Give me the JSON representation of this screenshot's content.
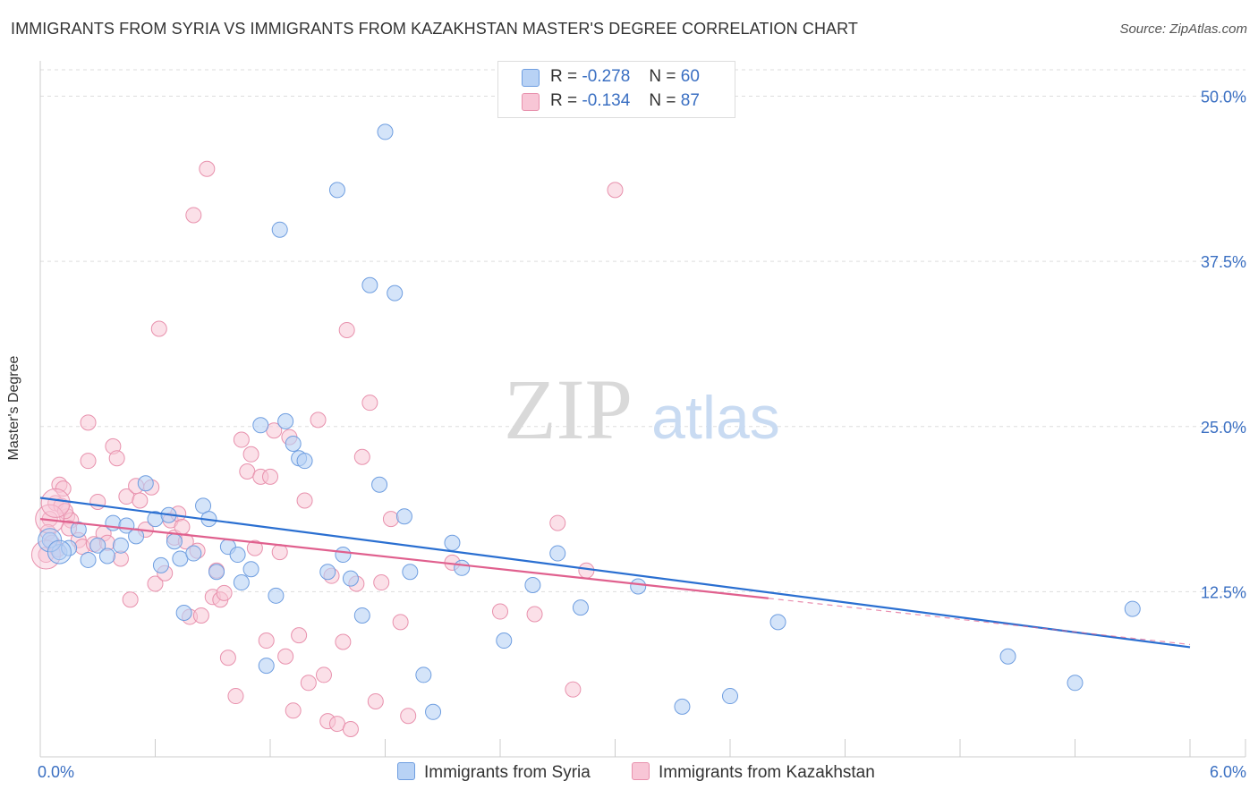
{
  "title": "IMMIGRANTS FROM SYRIA VS IMMIGRANTS FROM KAZAKHSTAN MASTER'S DEGREE CORRELATION CHART",
  "source": "Source: ZipAtlas.com",
  "watermark": {
    "zip": "ZIP",
    "atlas": "atlas"
  },
  "legend": {
    "syria": {
      "r_label": "R =",
      "r_value": "-0.278",
      "n_label": "N =",
      "n_value": "60"
    },
    "kazakhstan": {
      "r_label": "R =",
      "r_value": "-0.134",
      "n_label": "N =",
      "n_value": "87"
    }
  },
  "colors": {
    "syria_fill": "#b8d2f5",
    "syria_stroke": "#6f9ee0",
    "syria_line": "#2a6fd1",
    "kazakhstan_fill": "#f8c6d6",
    "kazakhstan_stroke": "#e891ad",
    "kazakhstan_line": "#e0608e",
    "grid": "#dddddd",
    "axis_text": "#3a6fc2"
  },
  "chart_data": {
    "type": "scatter",
    "title": "IMMIGRANTS FROM SYRIA VS IMMIGRANTS FROM KAZAKHSTAN MASTER'S DEGREE CORRELATION CHART",
    "xlabel": "",
    "ylabel": "Master's Degree",
    "xlim": [
      0,
      6
    ],
    "ylim": [
      0,
      52
    ],
    "x_tick_labels": [
      "0.0%",
      "6.0%"
    ],
    "y_ticks": [
      12.5,
      25.0,
      37.5,
      50.0
    ],
    "y_tick_labels": [
      "12.5%",
      "25.0%",
      "37.5%",
      "50.0%"
    ],
    "grid": true,
    "legend_position": "top-center",
    "series": [
      {
        "name": "Immigrants from Syria",
        "trend": {
          "x": [
            0,
            6
          ],
          "y": [
            19.6,
            8.3
          ]
        },
        "points": [
          [
            0.05,
            16.4
          ],
          [
            0.1,
            15.5
          ],
          [
            0.15,
            15.8
          ],
          [
            0.2,
            17.2
          ],
          [
            0.25,
            14.9
          ],
          [
            0.3,
            16.0
          ],
          [
            0.35,
            15.2
          ],
          [
            0.38,
            17.7
          ],
          [
            0.42,
            16.0
          ],
          [
            0.45,
            17.5
          ],
          [
            0.5,
            16.7
          ],
          [
            0.55,
            20.7
          ],
          [
            0.6,
            18.0
          ],
          [
            0.63,
            14.5
          ],
          [
            0.67,
            18.3
          ],
          [
            0.7,
            16.3
          ],
          [
            0.73,
            15.0
          ],
          [
            0.75,
            10.9
          ],
          [
            0.8,
            15.4
          ],
          [
            0.85,
            19.0
          ],
          [
            0.88,
            18.0
          ],
          [
            0.92,
            14.0
          ],
          [
            0.98,
            15.9
          ],
          [
            1.03,
            15.3
          ],
          [
            1.05,
            13.2
          ],
          [
            1.1,
            14.2
          ],
          [
            1.15,
            25.1
          ],
          [
            1.18,
            6.9
          ],
          [
            1.23,
            12.2
          ],
          [
            1.25,
            39.9
          ],
          [
            1.28,
            25.4
          ],
          [
            1.32,
            23.7
          ],
          [
            1.35,
            22.6
          ],
          [
            1.38,
            22.4
          ],
          [
            1.5,
            14.0
          ],
          [
            1.55,
            42.9
          ],
          [
            1.58,
            15.3
          ],
          [
            1.62,
            13.5
          ],
          [
            1.68,
            10.7
          ],
          [
            1.72,
            35.7
          ],
          [
            1.77,
            20.6
          ],
          [
            1.8,
            47.3
          ],
          [
            1.85,
            35.1
          ],
          [
            1.9,
            18.2
          ],
          [
            1.93,
            14.0
          ],
          [
            2.0,
            6.2
          ],
          [
            2.05,
            3.4
          ],
          [
            2.15,
            16.2
          ],
          [
            2.2,
            14.3
          ],
          [
            2.42,
            8.8
          ],
          [
            2.57,
            13.0
          ],
          [
            2.7,
            15.4
          ],
          [
            2.82,
            11.3
          ],
          [
            3.12,
            12.9
          ],
          [
            3.35,
            3.8
          ],
          [
            3.6,
            4.6
          ],
          [
            3.85,
            10.2
          ],
          [
            5.05,
            7.6
          ],
          [
            5.4,
            5.6
          ],
          [
            5.7,
            11.2
          ]
        ],
        "large_points": [
          [
            0.05,
            16.4
          ],
          [
            0.1,
            15.5
          ]
        ]
      },
      {
        "name": "Immigrants from Kazakhstan",
        "trend": {
          "x": [
            0,
            3.8
          ],
          "y": [
            18.0,
            12.0
          ]
        },
        "trend_dashed": {
          "x": [
            3.8,
            6
          ],
          "y": [
            12.0,
            8.5
          ]
        },
        "points": [
          [
            0.03,
            15.3
          ],
          [
            0.05,
            18.0
          ],
          [
            0.08,
            19.2
          ],
          [
            0.1,
            20.6
          ],
          [
            0.12,
            20.3
          ],
          [
            0.14,
            18.2
          ],
          [
            0.16,
            17.9
          ],
          [
            0.2,
            16.4
          ],
          [
            0.22,
            15.9
          ],
          [
            0.25,
            25.3
          ],
          [
            0.25,
            22.4
          ],
          [
            0.28,
            16.1
          ],
          [
            0.3,
            19.3
          ],
          [
            0.33,
            16.9
          ],
          [
            0.35,
            16.2
          ],
          [
            0.38,
            23.5
          ],
          [
            0.4,
            22.6
          ],
          [
            0.42,
            15.0
          ],
          [
            0.45,
            19.7
          ],
          [
            0.47,
            11.9
          ],
          [
            0.5,
            20.5
          ],
          [
            0.52,
            19.4
          ],
          [
            0.55,
            17.2
          ],
          [
            0.58,
            20.4
          ],
          [
            0.6,
            13.1
          ],
          [
            0.62,
            32.4
          ],
          [
            0.65,
            13.9
          ],
          [
            0.68,
            17.9
          ],
          [
            0.7,
            16.6
          ],
          [
            0.72,
            18.4
          ],
          [
            0.74,
            17.4
          ],
          [
            0.76,
            16.3
          ],
          [
            0.78,
            10.6
          ],
          [
            0.8,
            41.0
          ],
          [
            0.82,
            15.6
          ],
          [
            0.84,
            10.7
          ],
          [
            0.87,
            44.5
          ],
          [
            0.9,
            12.1
          ],
          [
            0.92,
            14.1
          ],
          [
            0.94,
            11.9
          ],
          [
            0.96,
            12.4
          ],
          [
            0.98,
            7.5
          ],
          [
            1.02,
            4.6
          ],
          [
            1.05,
            24.0
          ],
          [
            1.08,
            21.6
          ],
          [
            1.1,
            22.9
          ],
          [
            1.12,
            15.8
          ],
          [
            1.15,
            21.2
          ],
          [
            1.18,
            8.8
          ],
          [
            1.2,
            21.2
          ],
          [
            1.22,
            24.7
          ],
          [
            1.25,
            15.5
          ],
          [
            1.28,
            7.6
          ],
          [
            1.3,
            24.2
          ],
          [
            1.32,
            3.5
          ],
          [
            1.35,
            9.2
          ],
          [
            1.38,
            19.4
          ],
          [
            1.4,
            5.6
          ],
          [
            1.45,
            25.5
          ],
          [
            1.48,
            6.2
          ],
          [
            1.5,
            2.7
          ],
          [
            1.52,
            13.7
          ],
          [
            1.55,
            2.5
          ],
          [
            1.58,
            8.7
          ],
          [
            1.6,
            32.3
          ],
          [
            1.62,
            2.1
          ],
          [
            1.65,
            13.1
          ],
          [
            1.68,
            22.7
          ],
          [
            1.72,
            26.8
          ],
          [
            1.75,
            4.2
          ],
          [
            1.78,
            13.2
          ],
          [
            1.83,
            18.0
          ],
          [
            1.88,
            10.2
          ],
          [
            1.92,
            3.1
          ],
          [
            2.15,
            14.7
          ],
          [
            2.4,
            11.0
          ],
          [
            2.58,
            10.8
          ],
          [
            2.7,
            17.7
          ],
          [
            2.78,
            5.1
          ],
          [
            2.85,
            14.1
          ],
          [
            3.0,
            42.9
          ],
          [
            0.04,
            17.0
          ],
          [
            0.06,
            16.2
          ],
          [
            0.09,
            15.7
          ],
          [
            0.11,
            19.0
          ],
          [
            0.13,
            18.6
          ],
          [
            0.15,
            17.3
          ]
        ],
        "large_points": [
          [
            0.03,
            15.3
          ],
          [
            0.05,
            18.0
          ],
          [
            0.08,
            19.2
          ]
        ]
      }
    ]
  },
  "bottom_legend": {
    "syria_label": "Immigrants from Syria",
    "kazakhstan_label": "Immigrants from Kazakhstan"
  }
}
